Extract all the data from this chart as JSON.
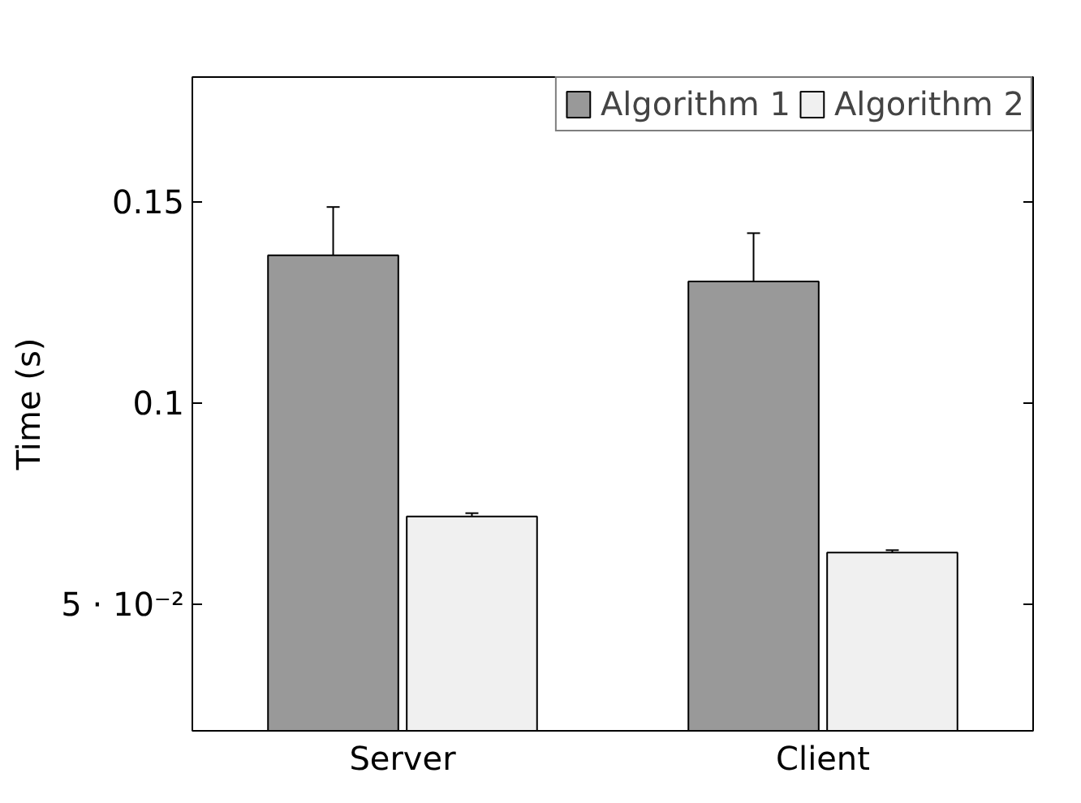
{
  "chart_data": {
    "type": "bar",
    "ylabel": "Time (s)",
    "categories": [
      "Server",
      "Client"
    ],
    "series": [
      {
        "name": "Algorithm 1",
        "color": "#999999",
        "values": [
          0.1367,
          0.1302
        ],
        "errors": [
          0.012,
          0.012
        ]
      },
      {
        "name": "Algorithm 2",
        "color": "#f0f0f0",
        "values": [
          0.0718,
          0.0628
        ],
        "errors": [
          0.0008,
          0.0006
        ]
      }
    ],
    "ylim": [
      0.0185,
      0.181
    ],
    "yticks": [
      {
        "value": 0.05,
        "label": "5 · 10⁻²"
      },
      {
        "value": 0.1,
        "label": "0.1"
      },
      {
        "value": 0.15,
        "label": "0.15"
      }
    ],
    "grid": false,
    "legend": "top right"
  }
}
